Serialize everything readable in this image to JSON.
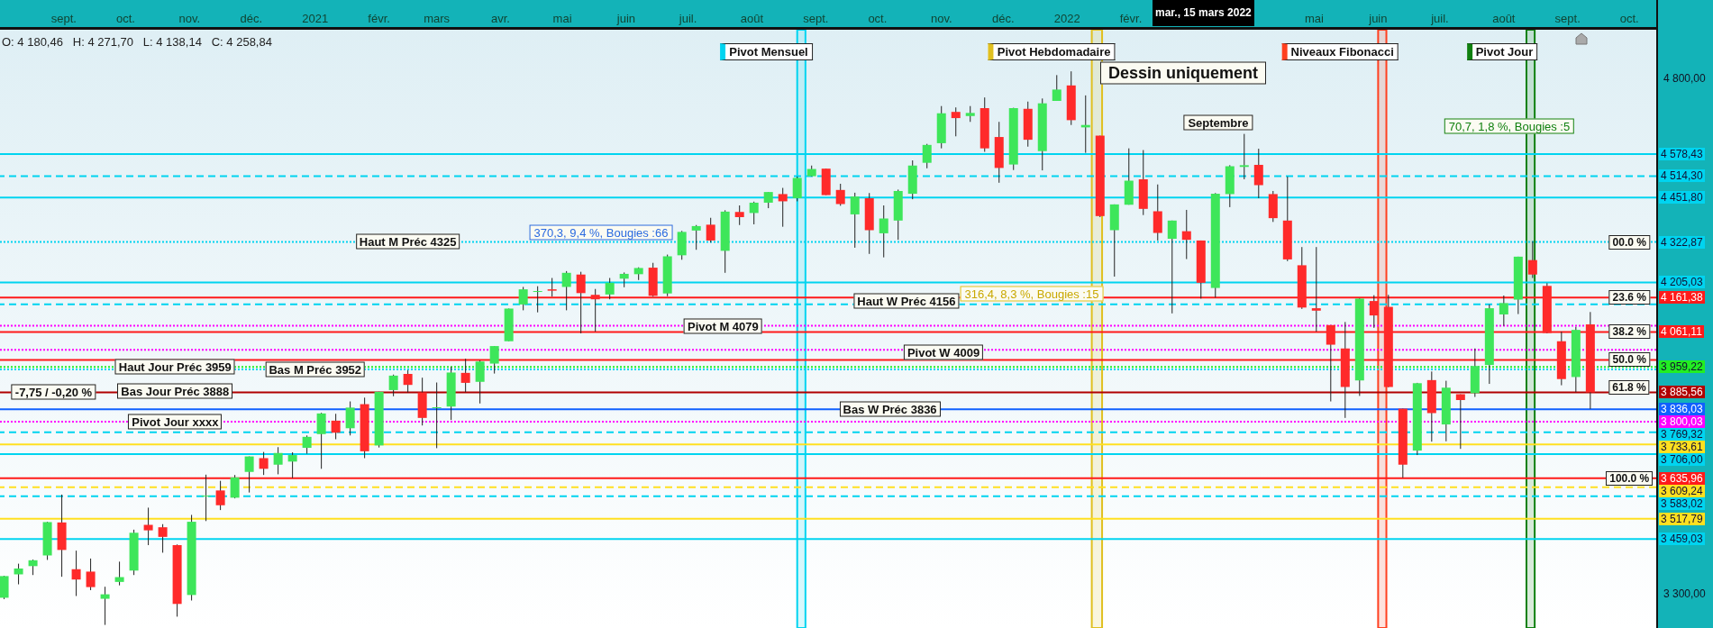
{
  "chart_data": {
    "type": "candlestick",
    "xlim": [
      "2020-08-01",
      "2022-10-14"
    ],
    "ylim": [
      3200,
      4940
    ],
    "yticks": [
      {
        "value": 4800,
        "label": "4 800,00"
      },
      {
        "value": 3300,
        "label": "3 300,00"
      }
    ],
    "xticks": [
      {
        "value": "2020-09-01",
        "label": "sept."
      },
      {
        "value": "2020-10-01",
        "label": "oct."
      },
      {
        "value": "2020-11-01",
        "label": "nov."
      },
      {
        "value": "2020-12-01",
        "label": "déc."
      },
      {
        "value": "2021-01-01",
        "label": "2021"
      },
      {
        "value": "2021-02-01",
        "label": "févr."
      },
      {
        "value": "2021-03-01",
        "label": "mars"
      },
      {
        "value": "2021-04-01",
        "label": "avr."
      },
      {
        "value": "2021-05-01",
        "label": "mai"
      },
      {
        "value": "2021-06-01",
        "label": "juin"
      },
      {
        "value": "2021-07-01",
        "label": "juil."
      },
      {
        "value": "2021-08-01",
        "label": "août"
      },
      {
        "value": "2021-09-01",
        "label": "sept."
      },
      {
        "value": "2021-10-01",
        "label": "oct."
      },
      {
        "value": "2021-11-01",
        "label": "nov."
      },
      {
        "value": "2021-12-01",
        "label": "déc."
      },
      {
        "value": "2022-01-01",
        "label": "2022"
      },
      {
        "value": "2022-02-01",
        "label": "févr."
      },
      {
        "value": "2022-05-01",
        "label": "mai"
      },
      {
        "value": "2022-06-01",
        "label": "juin"
      },
      {
        "value": "2022-07-01",
        "label": "juil."
      },
      {
        "value": "2022-08-01",
        "label": "août"
      },
      {
        "value": "2022-09-01",
        "label": "sept."
      },
      {
        "value": "2022-10-01",
        "label": "oct."
      }
    ],
    "x": [
      "2020-08-03",
      "2020-08-10",
      "2020-08-17",
      "2020-08-24",
      "2020-08-31",
      "2020-09-07",
      "2020-09-14",
      "2020-09-21",
      "2020-09-28",
      "2020-10-05",
      "2020-10-12",
      "2020-10-19",
      "2020-10-26",
      "2020-11-02",
      "2020-11-09",
      "2020-11-16",
      "2020-11-23",
      "2020-11-30",
      "2020-12-07",
      "2020-12-14",
      "2020-12-21",
      "2020-12-28",
      "2021-01-04",
      "2021-01-11",
      "2021-01-18",
      "2021-01-25",
      "2021-02-01",
      "2021-02-08",
      "2021-02-15",
      "2021-02-22",
      "2021-03-01",
      "2021-03-08",
      "2021-03-15",
      "2021-03-22",
      "2021-03-29",
      "2021-04-05",
      "2021-04-12",
      "2021-04-19",
      "2021-04-26",
      "2021-05-03",
      "2021-05-10",
      "2021-05-17",
      "2021-05-24",
      "2021-05-31",
      "2021-06-07",
      "2021-06-14",
      "2021-06-21",
      "2021-06-28",
      "2021-07-05",
      "2021-07-12",
      "2021-07-19",
      "2021-07-26",
      "2021-08-02",
      "2021-08-09",
      "2021-08-16",
      "2021-08-23",
      "2021-08-30",
      "2021-09-06",
      "2021-09-13",
      "2021-09-20",
      "2021-09-27",
      "2021-10-04",
      "2021-10-11",
      "2021-10-18",
      "2021-10-25",
      "2021-11-01",
      "2021-11-08",
      "2021-11-15",
      "2021-11-22",
      "2021-11-29",
      "2021-12-06",
      "2021-12-13",
      "2021-12-20",
      "2021-12-27",
      "2022-01-03",
      "2022-01-10",
      "2022-01-17",
      "2022-01-24",
      "2022-01-31",
      "2022-02-07",
      "2022-02-14",
      "2022-02-21",
      "2022-02-28",
      "2022-03-07",
      "2022-03-14",
      "2022-03-21",
      "2022-03-28",
      "2022-04-04",
      "2022-04-11",
      "2022-04-18",
      "2022-04-25",
      "2022-05-02",
      "2022-05-09",
      "2022-05-16",
      "2022-05-23",
      "2022-05-30",
      "2022-06-06",
      "2022-06-13",
      "2022-06-20",
      "2022-06-27",
      "2022-07-04",
      "2022-07-11",
      "2022-07-18",
      "2022-07-25",
      "2022-08-01",
      "2022-08-08",
      "2022-08-15",
      "2022-08-22",
      "2022-08-29",
      "2022-09-05",
      "2022-09-12"
    ],
    "ohlc": [
      [
        3288,
        3352,
        3284,
        3351
      ],
      [
        3356,
        3387,
        3327,
        3373
      ],
      [
        3380,
        3399,
        3354,
        3397
      ],
      [
        3411,
        3509,
        3398,
        3508
      ],
      [
        3507,
        3588,
        3349,
        3427
      ],
      [
        3371,
        3425,
        3293,
        3341
      ],
      [
        3364,
        3402,
        3310,
        3319
      ],
      [
        3285,
        3320,
        3209,
        3298
      ],
      [
        3334,
        3393,
        3324,
        3348
      ],
      [
        3367,
        3486,
        3354,
        3477
      ],
      [
        3500,
        3550,
        3441,
        3484
      ],
      [
        3493,
        3502,
        3419,
        3465
      ],
      [
        3441,
        3443,
        3233,
        3270
      ],
      [
        3296,
        3529,
        3280,
        3509
      ],
      [
        3583,
        3646,
        3511,
        3585
      ],
      [
        3600,
        3628,
        3543,
        3557
      ],
      [
        3579,
        3645,
        3577,
        3638
      ],
      [
        3654,
        3699,
        3594,
        3699
      ],
      [
        3694,
        3712,
        3645,
        3663
      ],
      [
        3675,
        3726,
        3647,
        3709
      ],
      [
        3684,
        3711,
        3636,
        3703
      ],
      [
        3724,
        3760,
        3707,
        3756
      ],
      [
        3764,
        3826,
        3663,
        3824
      ],
      [
        3803,
        3823,
        3749,
        3768
      ],
      [
        3781,
        3859,
        3760,
        3841
      ],
      [
        3851,
        3870,
        3694,
        3714
      ],
      [
        3731,
        3887,
        3725,
        3887
      ],
      [
        3892,
        3937,
        3874,
        3934
      ],
      [
        3939,
        3950,
        3885,
        3907
      ],
      [
        3885,
        3928,
        3789,
        3811
      ],
      [
        3842,
        3914,
        3723,
        3842
      ],
      [
        3844,
        3960,
        3805,
        3943
      ],
      [
        3942,
        3983,
        3886,
        3913
      ],
      [
        3916,
        3978,
        3853,
        3975
      ],
      [
        3969,
        4020,
        3940,
        4020
      ],
      [
        4034,
        4129,
        4034,
        4129
      ],
      [
        4141,
        4192,
        4124,
        4185
      ],
      [
        4179,
        4194,
        4118,
        4180
      ],
      [
        4185,
        4218,
        4164,
        4181
      ],
      [
        4192,
        4238,
        4124,
        4233
      ],
      [
        4228,
        4236,
        4057,
        4174
      ],
      [
        4169,
        4186,
        4062,
        4156
      ],
      [
        4170,
        4218,
        4156,
        4204
      ],
      [
        4216,
        4234,
        4191,
        4230
      ],
      [
        4229,
        4249,
        4212,
        4247
      ],
      [
        4248,
        4262,
        4164,
        4166
      ],
      [
        4173,
        4286,
        4165,
        4281
      ],
      [
        4284,
        4355,
        4271,
        4352
      ],
      [
        4356,
        4372,
        4300,
        4369
      ],
      [
        4373,
        4393,
        4321,
        4327
      ],
      [
        4297,
        4415,
        4233,
        4411
      ],
      [
        4410,
        4429,
        4372,
        4395
      ],
      [
        4407,
        4440,
        4374,
        4437
      ],
      [
        4437,
        4468,
        4421,
        4468
      ],
      [
        4462,
        4480,
        4367,
        4441
      ],
      [
        4450,
        4513,
        4441,
        4509
      ],
      [
        4514,
        4545,
        4513,
        4535
      ],
      [
        4536,
        4536,
        4459,
        4459
      ],
      [
        4474,
        4492,
        4428,
        4433
      ],
      [
        4403,
        4466,
        4306,
        4455
      ],
      [
        4450,
        4465,
        4288,
        4357
      ],
      [
        4348,
        4429,
        4278,
        4391
      ],
      [
        4385,
        4475,
        4329,
        4471
      ],
      [
        4463,
        4560,
        4447,
        4545
      ],
      [
        4553,
        4608,
        4537,
        4605
      ],
      [
        4610,
        4718,
        4595,
        4697
      ],
      [
        4701,
        4714,
        4630,
        4683
      ],
      [
        4689,
        4718,
        4672,
        4698
      ],
      [
        4712,
        4743,
        4585,
        4595
      ],
      [
        4628,
        4672,
        4495,
        4538
      ],
      [
        4548,
        4713,
        4532,
        4712
      ],
      [
        4710,
        4731,
        4600,
        4620
      ],
      [
        4587,
        4740,
        4531,
        4726
      ],
      [
        4733,
        4808,
        4733,
        4766
      ],
      [
        4778,
        4819,
        4663,
        4677
      ],
      [
        4656,
        4749,
        4582,
        4663
      ],
      [
        4632,
        4632,
        4395,
        4398
      ],
      [
        4357,
        4432,
        4222,
        4432
      ],
      [
        4431,
        4595,
        4431,
        4501
      ],
      [
        4505,
        4590,
        4401,
        4419
      ],
      [
        4412,
        4490,
        4327,
        4349
      ],
      [
        4332,
        4385,
        4115,
        4385
      ],
      [
        4354,
        4416,
        4273,
        4329
      ],
      [
        4327,
        4327,
        4158,
        4204
      ],
      [
        4189,
        4465,
        4161,
        4463
      ],
      [
        4462,
        4546,
        4424,
        4543
      ],
      [
        4541,
        4637,
        4505,
        4546
      ],
      [
        4547,
        4594,
        4450,
        4488
      ],
      [
        4462,
        4471,
        4381,
        4392
      ],
      [
        4385,
        4513,
        4267,
        4272
      ],
      [
        4255,
        4308,
        4128,
        4132
      ],
      [
        4130,
        4308,
        4062,
        4123
      ],
      [
        4081,
        4081,
        3859,
        4024
      ],
      [
        4013,
        4090,
        3811,
        3901
      ],
      [
        3920,
        4159,
        3875,
        4158
      ],
      [
        4151,
        4168,
        4073,
        4109
      ],
      [
        4134,
        4169,
        3900,
        3901
      ],
      [
        3838,
        3838,
        3637,
        3675
      ],
      [
        3716,
        3913,
        3703,
        3912
      ],
      [
        3921,
        3946,
        3742,
        3825
      ],
      [
        3792,
        3919,
        3743,
        3899
      ],
      [
        3880,
        3880,
        3721,
        3863
      ],
      [
        3883,
        4013,
        3872,
        3962
      ],
      [
        3965,
        4141,
        3910,
        4130
      ],
      [
        4112,
        4167,
        4079,
        4145
      ],
      [
        4155,
        4280,
        4113,
        4280
      ],
      [
        4270,
        4325,
        4218,
        4228
      ],
      [
        4195,
        4203,
        4057,
        4058
      ],
      [
        4034,
        4062,
        3906,
        3924
      ],
      [
        3930,
        4076,
        3886,
        4067
      ],
      [
        4083,
        4119,
        3837,
        3885.56
      ]
    ],
    "ref_lines": [
      {
        "axis": "y",
        "value": 4578.43,
        "label": "4 578,43",
        "color": "#00d4f0",
        "line_style": "solid"
      },
      {
        "axis": "y",
        "value": 4514.3,
        "label": "4 514,30",
        "color": "#00d4f0",
        "line_style": "dashed"
      },
      {
        "axis": "y",
        "value": 4451.8,
        "label": "4 451,80",
        "color": "#00d4f0",
        "line_style": "solid"
      },
      {
        "axis": "y",
        "value": 4322.87,
        "label": "4 322,87",
        "color": "#00d4f0",
        "line_style": "dotted"
      },
      {
        "axis": "y",
        "value": 4205.03,
        "label": "4 205,03",
        "color": "#00d4f0",
        "line_style": "solid"
      },
      {
        "axis": "y",
        "value": 4161.38,
        "label": "4 161,38",
        "color": "#ff1a1a",
        "line_style": "solid"
      },
      {
        "axis": "y",
        "value": 4141.51,
        "label": null,
        "color": "#00d4f0",
        "line_style": "dashed"
      },
      {
        "axis": "y",
        "value": 4079.47,
        "label": null,
        "color": "#ff00ff",
        "line_style": "dotted"
      },
      {
        "axis": "y",
        "value": 4061.11,
        "label": "4 061,11",
        "color": "#ff1a1a",
        "line_style": "solid"
      },
      {
        "axis": "y",
        "value": 4009,
        "label": null,
        "color": "#ff00ff",
        "line_style": "dotted"
      },
      {
        "axis": "y",
        "value": 3979.75,
        "label": null,
        "color": "#ff1a1a",
        "line_style": "solid"
      },
      {
        "axis": "y",
        "value": 3959.22,
        "label": "3 959,22",
        "color": "#22ee22",
        "line_style": "dotted"
      },
      {
        "axis": "y",
        "value": 3952,
        "label": null,
        "color": "#00d4f0",
        "line_style": "dotted"
      },
      {
        "axis": "y",
        "value": 3885.56,
        "label": "3 885,56",
        "color": "#b00000",
        "line_style": "solid"
      },
      {
        "axis": "y",
        "value": 3836.03,
        "label": "3 836,03",
        "color": "#1060ff",
        "line_style": "solid"
      },
      {
        "axis": "y",
        "value": 3800.03,
        "label": "3 800,03",
        "color": "#ff00ff",
        "line_style": "dotted"
      },
      {
        "axis": "y",
        "value": 3769.32,
        "label": "3 769,32",
        "color": "#00d4f0",
        "line_style": "dashed"
      },
      {
        "axis": "y",
        "value": 3733.61,
        "label": "3 733,61",
        "color": "#ffe020",
        "line_style": "solid"
      },
      {
        "axis": "y",
        "value": 3706,
        "label": "3 706,00",
        "color": "#00d4f0",
        "line_style": "solid"
      },
      {
        "axis": "y",
        "value": 3635.96,
        "label": "3 635,96",
        "color": "#ff1a1a",
        "line_style": "solid"
      },
      {
        "axis": "y",
        "value": 3609.24,
        "label": "3 609,24",
        "color": "#ffe020",
        "line_style": "dashed"
      },
      {
        "axis": "y",
        "value": 3583.02,
        "label": "3 583,02",
        "color": "#00d4f0",
        "line_style": "dashed"
      },
      {
        "axis": "y",
        "value": 3517.79,
        "label": "3 517,79",
        "color": "#ffe020",
        "line_style": "solid"
      },
      {
        "axis": "y",
        "value": 3459.03,
        "label": "3 459,03",
        "color": "#00d4f0",
        "line_style": "solid"
      }
    ],
    "bands": [
      {
        "axis": "x",
        "from": "2021-08-23",
        "to": "2021-08-27",
        "label": "Pivot Mensuel",
        "color": "#00d4f0"
      },
      {
        "axis": "x",
        "from": "2022-01-13",
        "to": "2022-01-18",
        "label": "Pivot Hebdomadaire",
        "color": "#e0c020"
      },
      {
        "axis": "x",
        "from": "2022-06-01",
        "to": "2022-06-05",
        "label": "Niveaux Fibonacci",
        "color": "#ff4020"
      },
      {
        "axis": "x",
        "from": "2022-08-12",
        "to": "2022-08-16",
        "label": "Pivot Jour",
        "color": "#108010"
      }
    ],
    "annotations": [
      "O: 4 180,46   H: 4 271,70   L: 4 138,14   C: 4 258,84",
      "mar., 15 mars 2022",
      "Dessin uniquement",
      "Septembre",
      "316,4, 8,3 %, Bougies :15",
      "70,7, 1,8 %, Bougies :5",
      "370,3, 9,4 %, Bougies :66",
      "61.8 %",
      {
        "text": "-7,75 / -0,20 %",
        "x": "2020-08-27",
        "y": 3885.56
      },
      {
        "text": "Haut M Préc 4325",
        "x": "2021-02-15",
        "y": 4325
      },
      {
        "text": "Bas M Préc 3952",
        "x": "2021-01-01",
        "y": 3952
      },
      {
        "text": "Pivot M 4079",
        "x": "2021-07-18",
        "y": 4079
      },
      {
        "text": "Haut W Préc 4156",
        "x": "2021-10-15",
        "y": 4150
      },
      {
        "text": "Pivot W 4009",
        "x": "2021-11-02",
        "y": 4003
      },
      {
        "text": "Bas W Préc 3836",
        "x": "2021-10-07",
        "y": 3836
      },
      {
        "text": "00.0 %",
        "x": "2022-10-01",
        "y": 4322.87
      },
      {
        "text": "23.6 %",
        "x": "2022-10-01",
        "y": 4161.38
      },
      {
        "text": "38.2 %",
        "x": "2022-10-01",
        "y": 4061.11
      },
      {
        "text": "50.0 %",
        "x": "2022-10-01",
        "y": 3979.75
      },
      {
        "text": "100.0 %",
        "x": "2022-10-01",
        "y": 3635.96
      },
      {
        "text": "Haut Jour Préc 3959",
        "x": "2020-10-25",
        "y": 3959
      },
      {
        "text": "Bas Jour Préc 3888",
        "x": "2020-10-25",
        "y": 3888
      },
      {
        "text": "Pivot Jour xxxx",
        "x": "2020-10-25",
        "y": 3800
      }
    ]
  }
}
